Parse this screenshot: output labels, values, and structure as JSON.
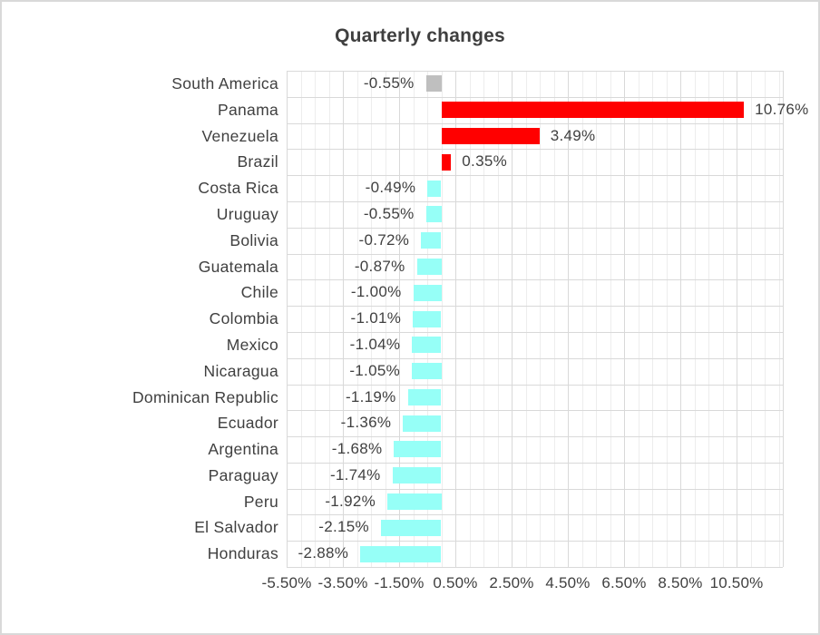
{
  "colors": {
    "background": "#FFFFFF",
    "canvas_border": "#D9D9D9",
    "positive_bar": "#FF0000",
    "negative_bar": "#96FFF7",
    "aggregate_bar": "#BFBFBF",
    "text": "#404040",
    "grid_major": "#D9D9D9",
    "grid_minor": "#EDEDED"
  },
  "chart_data": {
    "type": "bar",
    "orientation": "horizontal",
    "title": "Quarterly changes",
    "legend": "none",
    "grid": true,
    "categories": [
      "South America",
      "Panama",
      "Venezuela",
      "Brazil",
      "Costa Rica",
      "Uruguay",
      "Bolivia",
      "Guatemala",
      "Chile",
      "Colombia",
      "Mexico",
      "Nicaragua",
      "Dominican Republic",
      "Ecuador",
      "Argentina",
      "Paraguay",
      "Peru",
      "El Salvador",
      "Honduras"
    ],
    "values": [
      -0.55,
      10.76,
      3.49,
      0.35,
      -0.49,
      -0.55,
      -0.72,
      -0.87,
      -1.0,
      -1.01,
      -1.04,
      -1.05,
      -1.19,
      -1.36,
      -1.68,
      -1.74,
      -1.92,
      -2.15,
      -2.88
    ],
    "data_labels": [
      "-0.55%",
      "10.76%",
      "3.49%",
      "0.35%",
      "-0.49%",
      "-0.55%",
      "-0.72%",
      "-0.87%",
      "-1.00%",
      "-1.01%",
      "-1.04%",
      "-1.05%",
      "-1.19%",
      "-1.36%",
      "-1.68%",
      "-1.74%",
      "-1.92%",
      "-2.15%",
      "-2.88%"
    ],
    "bar_colors": [
      "#BFBFBF",
      "#FF0000",
      "#FF0000",
      "#FF0000",
      "#96FFF7",
      "#96FFF7",
      "#96FFF7",
      "#96FFF7",
      "#96FFF7",
      "#96FFF7",
      "#96FFF7",
      "#96FFF7",
      "#96FFF7",
      "#96FFF7",
      "#96FFF7",
      "#96FFF7",
      "#96FFF7",
      "#96FFF7",
      "#96FFF7"
    ],
    "x_axis": {
      "min": -5.5,
      "max": 12.15,
      "major_step": 2,
      "minor_step": 0.5,
      "tick_values": [
        -5.5,
        -3.5,
        -1.5,
        0.5,
        2.5,
        4.5,
        6.5,
        8.5,
        10.5
      ],
      "tick_labels": [
        "-5.50%",
        "-3.50%",
        "-1.50%",
        "0.50%",
        "2.50%",
        "4.50%",
        "6.50%",
        "8.50%",
        "10.50%"
      ]
    }
  }
}
